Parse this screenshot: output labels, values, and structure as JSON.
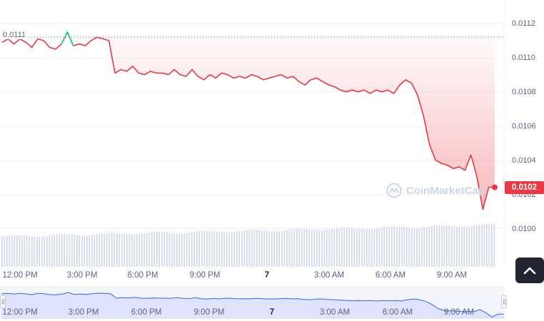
{
  "colors": {
    "line_down": "#ea3943",
    "line_up": "#16c784",
    "fill": "#ea3943",
    "volume": "#cfd6e4",
    "grid": "#eff2f5",
    "navigator_fill": "#dfe3fb",
    "navigator_line": "#3861fb",
    "badge_bg": "#ea3943",
    "scroll_button_bg": "#222531"
  },
  "chart": {
    "reference_price_label": "0.0111",
    "current_price_label": "0.0102",
    "watermark_text": "CoinMarketCap",
    "y_ticks": [
      "0.0112",
      "0.0110",
      "0.0108",
      "0.0106",
      "0.0104",
      "0.0102",
      "0.0100"
    ],
    "x_ticks": [
      "12:00 PM",
      "3:00 PM",
      "6:00 PM",
      "9:00 PM",
      "7",
      "3:00 AM",
      "6:00 AM",
      "9:00 AM"
    ],
    "navigator_ticks": [
      "12:00 PM",
      "3:00 PM",
      "6:00 PM",
      "9:00 PM",
      "7",
      "3:00 AM",
      "6:00 AM",
      "9:00 AM"
    ]
  },
  "icons": {
    "scroll_button": "chevron-up-icon",
    "watermark_logo": "coinmarketcap-logo-icon"
  },
  "chart_data": {
    "type": "line",
    "y_range": [
      0.00985,
      0.01125
    ],
    "reference_price": 0.01112,
    "current_price": 0.01024,
    "time_labels": [
      "12:00 PM",
      "3:00 PM",
      "6:00 PM",
      "9:00 PM",
      "7",
      "3:00 AM",
      "6:00 AM",
      "9:00 AM"
    ],
    "series": [
      {
        "price": [
          0.01109,
          0.01111,
          0.01108,
          0.01111,
          0.01109,
          0.01106,
          0.01111,
          0.0111,
          0.01106,
          0.01105,
          0.01108,
          0.01115,
          0.01107,
          0.01108,
          0.01107,
          0.0111,
          0.01112,
          0.01111,
          0.0111,
          0.01091,
          0.01093,
          0.01092,
          0.01095,
          0.01091,
          0.0109,
          0.01092,
          0.01091,
          0.01091,
          0.0109,
          0.01093,
          0.0109,
          0.01089,
          0.01093,
          0.01089,
          0.01087,
          0.0109,
          0.01088,
          0.01091,
          0.0109,
          0.01088,
          0.01089,
          0.01088,
          0.0109,
          0.01089,
          0.01087,
          0.01088,
          0.01089,
          0.0109,
          0.01088,
          0.01089,
          0.01086,
          0.01084,
          0.01087,
          0.01088,
          0.01086,
          0.01084,
          0.01083,
          0.01081,
          0.0108,
          0.01081,
          0.0108,
          0.01081,
          0.01079,
          0.01081,
          0.0108,
          0.01081,
          0.01079,
          0.01084,
          0.01087,
          0.01085,
          0.01078,
          0.01066,
          0.01049,
          0.0104,
          0.01038,
          0.01037,
          0.01035,
          0.01036,
          0.01034,
          0.01043,
          0.0103,
          0.01011,
          0.01024,
          0.01024
        ]
      }
    ]
  }
}
